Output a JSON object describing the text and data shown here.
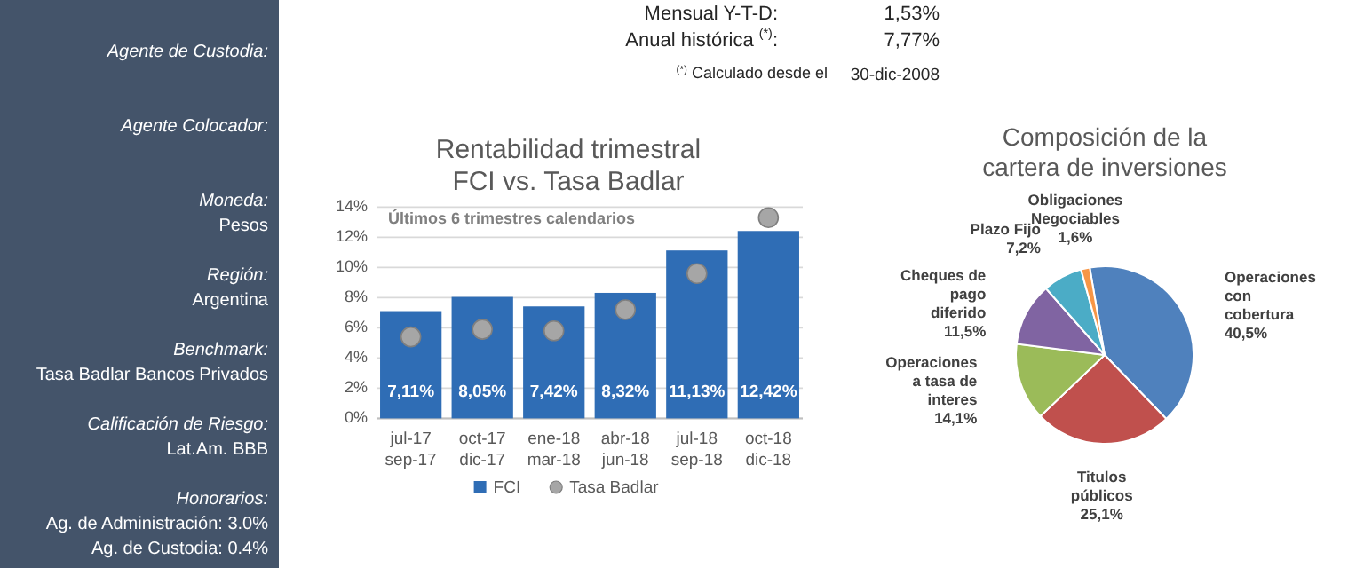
{
  "chart_data": [
    {
      "type": "other",
      "annotations": [
        "Agente de Custodia:",
        "Agente Colocador:",
        "Moneda:",
        "Pesos",
        "Región:",
        "Argentina",
        "Benchmark:",
        "Tasa Badlar Bancos Privados",
        "Calificación de Riesgo:",
        "Lat.Am. BBB",
        "Honorarios:",
        "Ag. de Administración: 3.0%",
        "Ag. de Custodia: 0.4%",
        "Mensual Y-T-D:",
        "1,53%",
        "Anual histórica $^{(*)}$:",
        "7,77%",
        "$^{(*)}$ Calculado desde el",
        "30-dic-2008"
      ]
    },
    {
      "type": "bar",
      "title": "Rentabilidad trimestral FCI vs. Tasa Badlar",
      "subtitle": "Últimos 6 trimestres calendarios",
      "categories": [
        "jul-17 sep-17",
        "oct-17 dic-17",
        "ene-18 mar-18",
        "abr-18 jun-18",
        "jul-18 sep-18",
        "oct-18 dic-18"
      ],
      "series": [
        {
          "name": "FCI",
          "type": "bar",
          "color": "#2f6db5",
          "values": [
            7.11,
            8.05,
            7.42,
            8.32,
            11.13,
            12.42
          ],
          "value_labels": [
            "7,11%",
            "8,05%",
            "7,42%",
            "8,32%",
            "11,13%",
            "12,42%"
          ]
        },
        {
          "name": "Tasa Badlar",
          "type": "scatter",
          "color": "#a6a6a6",
          "x": [
            "jul-17 sep-17",
            "oct-17 dic-17",
            "ene-18 mar-18",
            "abr-18 jun-18",
            "jul-18 sep-18",
            "oct-18 dic-18"
          ],
          "values": [
            5.4,
            5.9,
            5.8,
            7.2,
            9.6,
            13.3
          ]
        }
      ],
      "ylim": [
        0,
        14
      ],
      "yticks": [
        {
          "value": 0,
          "label": "0%"
        },
        {
          "value": 2,
          "label": "2%"
        },
        {
          "value": 4,
          "label": "4%"
        },
        {
          "value": 6,
          "label": "6%"
        },
        {
          "value": 8,
          "label": "8%"
        },
        {
          "value": 10,
          "label": "10%"
        },
        {
          "value": 12,
          "label": "12%"
        },
        {
          "value": 14,
          "label": "14%"
        }
      ],
      "grid": "y",
      "legend": "bottom",
      "marker": "circle"
    },
    {
      "type": "pie",
      "title": "Composición de la cartera de inversiones",
      "categories": [
        "Operaciones con cobertura",
        "Titulos públicos",
        "Operaciones a tasa de interes",
        "Cheques de pago diferido",
        "Plazo Fijo",
        "Obligaciones Negociables"
      ],
      "values": [
        40.5,
        25.1,
        14.1,
        11.5,
        7.2,
        1.6
      ],
      "value_labels": [
        "40,5%",
        "25,1%",
        "14,1%",
        "11,5%",
        "7,2%",
        "1,6%"
      ],
      "colors": [
        "#4f81bd",
        "#c0504d",
        "#9bbb59",
        "#8064a2",
        "#4bacc6",
        "#f79646"
      ]
    }
  ]
}
